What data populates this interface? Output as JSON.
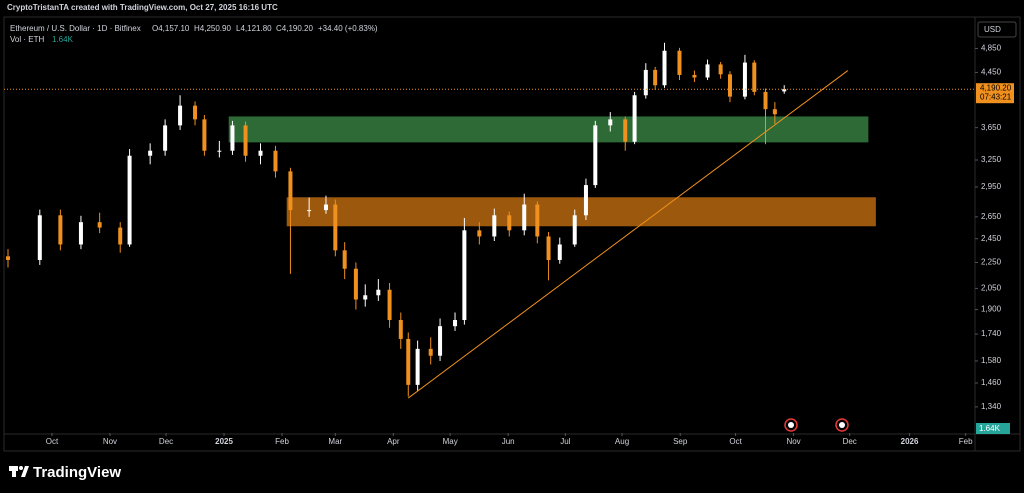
{
  "header": {
    "credit": "CryptoTristanTA created with TradingView.com, Oct 27, 2025 16:16 UTC",
    "symbol": "Ethereum / U.S. Dollar · 1D · Bitfinex",
    "open": "O4,157.10",
    "high": "H4,250.90",
    "low": "L4,121.80",
    "close": "C4,190.20",
    "change": "+34.40 (+0.83%)",
    "volume_name": "Vol · ETH",
    "volume_value": "1.64K",
    "currency": "USD"
  },
  "chart_data": {
    "type": "candlestick",
    "log_scale": true,
    "xlim": [
      0,
      517
    ],
    "ylim": [
      1220,
      5410
    ],
    "xticks": [
      {
        "value": 23.5,
        "label": "Oct"
      },
      {
        "value": 54.5,
        "label": "Nov"
      },
      {
        "value": 84.5,
        "label": "Dec"
      },
      {
        "value": 115.5,
        "label": "2025"
      },
      {
        "value": 146.5,
        "label": "Feb"
      },
      {
        "value": 175,
        "label": "Mar"
      },
      {
        "value": 206,
        "label": "Apr"
      },
      {
        "value": 236.4,
        "label": "May"
      },
      {
        "value": 267.4,
        "label": "Jun"
      },
      {
        "value": 298,
        "label": "Jul"
      },
      {
        "value": 328.3,
        "label": "Aug"
      },
      {
        "value": 359.4,
        "label": "Sep"
      },
      {
        "value": 389,
        "label": "Oct"
      },
      {
        "value": 420,
        "label": "Nov"
      },
      {
        "value": 450,
        "label": "Dec"
      },
      {
        "value": 482,
        "label": "2026"
      },
      {
        "value": 512,
        "label": "Feb"
      }
    ],
    "yticks": [
      {
        "value": 4850,
        "label": "4,850"
      },
      {
        "value": 4450,
        "label": "4,450"
      },
      {
        "value": 3650,
        "label": "3,650"
      },
      {
        "value": 3250,
        "label": "3,250"
      },
      {
        "value": 2950,
        "label": "2,950"
      },
      {
        "value": 2650,
        "label": "2,650"
      },
      {
        "value": 2450,
        "label": "2,450"
      },
      {
        "value": 2250,
        "label": "2,250"
      },
      {
        "value": 2050,
        "label": "2,050"
      },
      {
        "value": 1900,
        "label": "1,900"
      },
      {
        "value": 1740,
        "label": "1,740"
      },
      {
        "value": 1580,
        "label": "1,580"
      },
      {
        "value": 1460,
        "label": "1,460"
      },
      {
        "value": 1340,
        "label": "1,340"
      }
    ],
    "up_color": "#ffffff",
    "down_color": "#f0901e",
    "series": [
      {
        "name": "ETHUSD",
        "x": [
          0,
          17,
          28,
          39,
          49,
          60,
          65,
          76,
          84,
          92,
          100,
          105,
          113,
          120,
          127,
          135,
          143,
          151,
          161,
          170,
          175,
          180,
          186,
          191,
          198,
          204,
          210,
          214,
          219,
          226,
          231,
          239,
          244,
          252,
          260,
          268,
          276,
          283,
          289,
          295,
          303,
          309,
          314,
          322,
          330,
          335,
          341,
          346,
          351,
          359,
          367,
          374,
          381,
          386,
          394,
          399,
          405,
          410,
          415
        ],
        "open": [
          2300,
          2270,
          2665,
          2400,
          2600,
          2550,
          2400,
          3300,
          3360,
          3680,
          3950,
          3760,
          3360,
          3360,
          3680,
          3300,
          3360,
          3120,
          2715,
          2715,
          2770,
          2350,
          2200,
          1970,
          2000,
          2040,
          1830,
          1710,
          1450,
          1650,
          1610,
          1790,
          1830,
          2525,
          2470,
          2665,
          2525,
          2770,
          2470,
          2270,
          2400,
          2665,
          2970,
          3680,
          3760,
          3470,
          4100,
          4490,
          4250,
          4810,
          4410,
          4370,
          4580,
          4420,
          4080,
          4610,
          4150,
          3900,
          4157.1
        ],
        "high": [
          2360,
          2720,
          2720,
          2660,
          2690,
          2600,
          3380,
          3450,
          3760,
          4100,
          4010,
          3820,
          3480,
          3740,
          3730,
          3450,
          3420,
          3160,
          2840,
          2860,
          2820,
          2420,
          2250,
          2080,
          2120,
          2090,
          1880,
          1750,
          1700,
          1720,
          1840,
          1880,
          2640,
          2600,
          2730,
          2700,
          2880,
          2800,
          2510,
          2460,
          2720,
          3040,
          3740,
          3860,
          3800,
          4150,
          4600,
          4540,
          4950,
          4860,
          4480,
          4660,
          4620,
          4470,
          4740,
          4650,
          4200,
          4000,
          4250.9
        ],
        "low": [
          2210,
          2230,
          2350,
          2360,
          2500,
          2330,
          2380,
          3200,
          3300,
          3620,
          3680,
          3300,
          3280,
          3310,
          3230,
          3200,
          3050,
          2160,
          2650,
          2680,
          2300,
          2120,
          1900,
          1920,
          1960,
          1780,
          1650,
          1390,
          1420,
          1560,
          1580,
          1760,
          1800,
          2400,
          2430,
          2470,
          2480,
          2410,
          2110,
          2240,
          2380,
          2620,
          2940,
          3600,
          3360,
          3440,
          4050,
          4180,
          4210,
          4330,
          4300,
          4330,
          4350,
          4000,
          4040,
          4100,
          3440,
          3700,
          4121.8
        ],
        "close": [
          2270,
          2665,
          2400,
          2600,
          2550,
          2400,
          3300,
          3360,
          3680,
          3950,
          3760,
          3360,
          3360,
          3680,
          3300,
          3360,
          3120,
          2715,
          2715,
          2770,
          2350,
          2200,
          1970,
          2000,
          2040,
          1830,
          1710,
          1450,
          1650,
          1610,
          1790,
          1830,
          2525,
          2470,
          2665,
          2525,
          2770,
          2470,
          2270,
          2400,
          2665,
          2970,
          3680,
          3760,
          3470,
          4100,
          4490,
          4250,
          4810,
          4410,
          4370,
          4580,
          4420,
          4080,
          4610,
          4150,
          3900,
          3830,
          4190.2
        ]
      }
    ],
    "zones": [
      {
        "x": [
          118,
          460
        ],
        "y": [
          3462,
          3800
        ],
        "color": "#2d6a35"
      },
      {
        "x": [
          149,
          464
        ],
        "y": [
          2562,
          2843
        ],
        "color": "#9c580c"
      }
    ],
    "trendline": {
      "x": [
        214,
        449
      ],
      "y": [
        1383,
        4480
      ],
      "color": "#f0901e"
    },
    "last_price": {
      "value": 4190.2,
      "label": "4,190.20"
    },
    "countdown": "07:43:21"
  },
  "footer": {
    "brand": "TradingView"
  }
}
